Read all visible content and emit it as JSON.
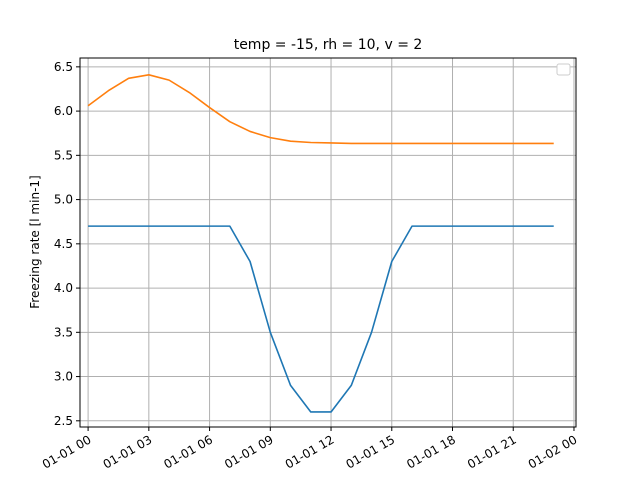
{
  "chart_data": {
    "type": "line",
    "title": "temp = -15, rh = 10, v = 2",
    "xlabel": "",
    "ylabel": "Freezing rate [l min-1]",
    "x": [
      0,
      1,
      2,
      3,
      4,
      5,
      6,
      7,
      8,
      9,
      10,
      11,
      12,
      13,
      14,
      15,
      16,
      17,
      18,
      19,
      20,
      21,
      22,
      23
    ],
    "x_unit": "hours from 01-01 00",
    "xlim": [
      -0.4,
      24.1
    ],
    "ylim": [
      2.43,
      6.6
    ],
    "xticks": [
      0,
      3,
      6,
      9,
      12,
      15,
      18,
      21,
      24
    ],
    "xtick_labels": [
      "01-01 00",
      "01-01 03",
      "01-01 06",
      "01-01 09",
      "01-01 12",
      "01-01 15",
      "01-01 18",
      "01-01 21",
      "01-02 00"
    ],
    "yticks": [
      2.5,
      3.0,
      3.5,
      4.0,
      4.5,
      5.0,
      5.5,
      6.0,
      6.5
    ],
    "ytick_labels": [
      "2.5",
      "3.0",
      "3.5",
      "4.0",
      "4.5",
      "5.0",
      "5.5",
      "6.0",
      "6.5"
    ],
    "grid": true,
    "legend": "upper right, empty",
    "series": [
      {
        "color": "#1f77b4",
        "values": [
          4.7,
          4.7,
          4.7,
          4.7,
          4.7,
          4.7,
          4.7,
          4.7,
          4.3,
          3.5,
          2.9,
          2.6,
          2.6,
          2.9,
          3.5,
          4.3,
          4.7,
          4.7,
          4.7,
          4.7,
          4.7,
          4.7,
          4.7,
          4.7
        ]
      },
      {
        "color": "#ff7f0e",
        "values": [
          6.06,
          6.23,
          6.37,
          6.41,
          6.35,
          6.21,
          6.04,
          5.88,
          5.77,
          5.7,
          5.66,
          5.645,
          5.64,
          5.635,
          5.635,
          5.635,
          5.635,
          5.635,
          5.635,
          5.635,
          5.635,
          5.635,
          5.635,
          5.635
        ]
      }
    ]
  }
}
